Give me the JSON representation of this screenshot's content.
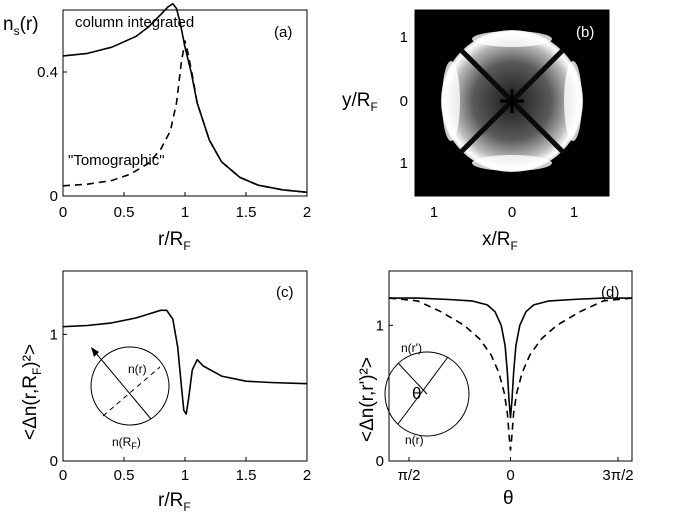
{
  "chart_data": [
    {
      "panel": "(a)",
      "type": "line",
      "ylabel": "n",
      "ylabel_sub": "s",
      "ylabel_suffix": "(r)",
      "xlabel": "r/R",
      "xlabel_sub": "F",
      "xlim": [
        0,
        2
      ],
      "ylim": [
        0,
        0.6
      ],
      "x_ticks": [
        "0",
        "0.5",
        "1",
        "1.5",
        "2"
      ],
      "y_ticks": [
        "0",
        "0.4"
      ],
      "annotations": [
        "column integrated",
        "\"Tomographic\""
      ],
      "series": [
        {
          "style": "solid",
          "x": [
            0,
            0.2,
            0.4,
            0.6,
            0.7,
            0.8,
            0.86,
            0.9,
            0.93,
            0.96,
            1.0,
            1.05,
            1.1,
            1.2,
            1.3,
            1.45,
            1.6,
            1.8,
            2.0
          ],
          "y": [
            0.452,
            0.46,
            0.48,
            0.515,
            0.545,
            0.585,
            0.61,
            0.62,
            0.605,
            0.56,
            0.48,
            0.4,
            0.3,
            0.18,
            0.11,
            0.06,
            0.035,
            0.02,
            0.012
          ]
        },
        {
          "style": "dashed",
          "x": [
            0,
            0.2,
            0.4,
            0.55,
            0.7,
            0.8,
            0.88,
            0.93,
            0.97,
            1.0,
            1.02,
            1.06,
            1.1,
            1.2,
            1.3,
            1.45,
            1.6,
            1.8,
            2.0
          ],
          "y": [
            0.033,
            0.038,
            0.05,
            0.07,
            0.105,
            0.15,
            0.21,
            0.3,
            0.43,
            0.5,
            0.47,
            0.39,
            0.3,
            0.18,
            0.11,
            0.06,
            0.035,
            0.02,
            0.012
          ]
        }
      ]
    },
    {
      "panel": "(b)",
      "type": "heatmap",
      "xlabel": "x/R",
      "xlabel_sub": "F",
      "ylabel": "y/R",
      "ylabel_sub": "F",
      "x_ticks": [
        "1",
        "0",
        "1"
      ],
      "y_ticks": [
        "1",
        "0",
        "1"
      ],
      "colormap": "grayscale"
    },
    {
      "panel": "(c)",
      "type": "line",
      "ylabel": "<Δn(r,R",
      "ylabel_sub": "F",
      "ylabel_suffix": ")²>",
      "xlabel": "r/R",
      "xlabel_sub": "F",
      "xlim": [
        0,
        2
      ],
      "ylim": [
        0,
        1.5
      ],
      "x_ticks": [
        "0",
        "0.5",
        "1",
        "1.5",
        "2"
      ],
      "y_ticks": [
        "0",
        "1"
      ],
      "inset_labels": [
        "n(r)",
        "n(R",
        "F",
        ")"
      ],
      "series": [
        {
          "style": "solid",
          "x": [
            0,
            0.2,
            0.4,
            0.6,
            0.7,
            0.8,
            0.85,
            0.9,
            0.94,
            0.97,
            0.99,
            1.01,
            1.03,
            1.06,
            1.1,
            1.15,
            1.3,
            1.5,
            1.7,
            2.0
          ],
          "y": [
            1.06,
            1.07,
            1.09,
            1.13,
            1.16,
            1.19,
            1.19,
            1.12,
            0.9,
            0.6,
            0.4,
            0.37,
            0.5,
            0.72,
            0.8,
            0.75,
            0.67,
            0.63,
            0.62,
            0.61
          ]
        }
      ]
    },
    {
      "panel": "(d)",
      "type": "line",
      "ylabel": "<Δn(r,r')²>",
      "xlabel": "θ",
      "xlim": [
        -1.5708,
        1.5708
      ],
      "ylim": [
        0,
        1.4
      ],
      "x_ticks": [
        "π/2",
        "0",
        "3π/2"
      ],
      "y_ticks": [
        "0",
        "1"
      ],
      "inset_labels": [
        "n(r')",
        "θ",
        "n(r)"
      ],
      "series": [
        {
          "style": "solid",
          "x": [
            -1.5708,
            -1.2,
            -0.8,
            -0.5,
            -0.3,
            -0.2,
            -0.12,
            -0.07,
            -0.04,
            -0.02,
            0,
            0.02,
            0.04,
            0.07,
            0.12,
            0.2,
            0.3,
            0.5,
            0.8,
            1.2,
            1.5708
          ],
          "y": [
            1.2,
            1.2,
            1.19,
            1.18,
            1.15,
            1.1,
            1.0,
            0.85,
            0.65,
            0.45,
            0.32,
            0.45,
            0.65,
            0.85,
            1.0,
            1.1,
            1.15,
            1.18,
            1.19,
            1.2,
            1.2
          ]
        },
        {
          "style": "dashed",
          "x": [
            -1.5708,
            -1.2,
            -0.9,
            -0.6,
            -0.4,
            -0.25,
            -0.15,
            -0.08,
            -0.04,
            -0.015,
            0,
            0.015,
            0.04,
            0.08,
            0.15,
            0.25,
            0.4,
            0.6,
            0.9,
            1.2,
            1.5708
          ],
          "y": [
            1.2,
            1.18,
            1.1,
            1.0,
            0.9,
            0.78,
            0.65,
            0.5,
            0.35,
            0.17,
            0.08,
            0.17,
            0.35,
            0.5,
            0.65,
            0.78,
            0.9,
            1.0,
            1.1,
            1.18,
            1.2
          ]
        }
      ]
    }
  ]
}
